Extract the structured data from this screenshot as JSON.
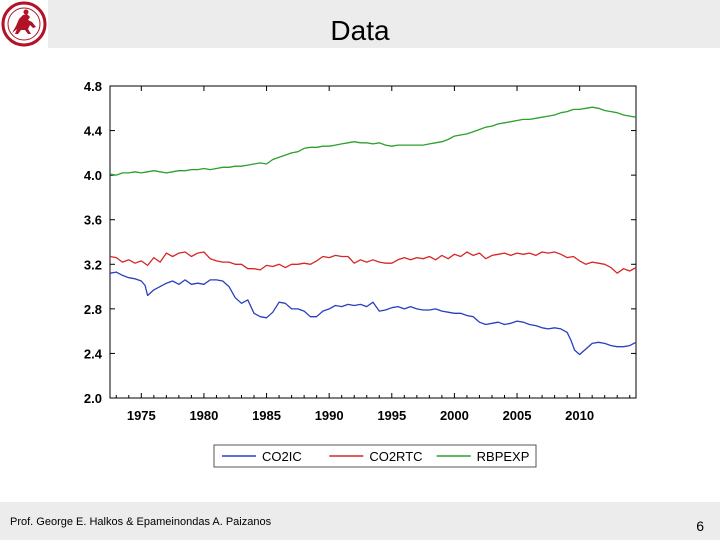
{
  "slide": {
    "title": "Data",
    "footer_author": "Prof. George E. Halkos & Epameinondas A. Paizanos",
    "page_number": "6",
    "logo_icon": "university-seal-icon"
  },
  "chart_data": {
    "type": "line",
    "title": "",
    "xlabel": "",
    "ylabel": "",
    "xlim": [
      1972.5,
      2014.5
    ],
    "ylim": [
      2.0,
      4.8
    ],
    "yticks": [
      2.0,
      2.4,
      2.8,
      3.2,
      3.6,
      4.0,
      4.4,
      4.8
    ],
    "ytick_labels": [
      "2.0",
      "2.4",
      "2.8",
      "3.2",
      "3.6",
      "4.0",
      "4.4",
      "4.8"
    ],
    "xticks": [
      1975,
      1980,
      1985,
      1990,
      1995,
      2000,
      2005,
      2010
    ],
    "xtick_labels": [
      "1975",
      "1980",
      "1985",
      "1990",
      "1995",
      "2000",
      "2005",
      "2010"
    ],
    "grid": false,
    "legend_position": "bottom",
    "series": [
      {
        "name": "CO2IC",
        "color": "#2a3fbf",
        "points": [
          [
            1972.5,
            3.12
          ],
          [
            1973.0,
            3.13
          ],
          [
            1973.5,
            3.1
          ],
          [
            1974.0,
            3.08
          ],
          [
            1974.5,
            3.07
          ],
          [
            1975.0,
            3.05
          ],
          [
            1975.3,
            3.01
          ],
          [
            1975.5,
            2.92
          ],
          [
            1976.0,
            2.97
          ],
          [
            1976.5,
            3.0
          ],
          [
            1977.0,
            3.03
          ],
          [
            1977.5,
            3.05
          ],
          [
            1978.0,
            3.02
          ],
          [
            1978.5,
            3.06
          ],
          [
            1979.0,
            3.02
          ],
          [
            1979.5,
            3.03
          ],
          [
            1980.0,
            3.02
          ],
          [
            1980.5,
            3.06
          ],
          [
            1981.0,
            3.06
          ],
          [
            1981.5,
            3.05
          ],
          [
            1982.0,
            3.0
          ],
          [
            1982.5,
            2.9
          ],
          [
            1983.0,
            2.85
          ],
          [
            1983.5,
            2.88
          ],
          [
            1984.0,
            2.76
          ],
          [
            1984.5,
            2.73
          ],
          [
            1985.0,
            2.72
          ],
          [
            1985.5,
            2.77
          ],
          [
            1986.0,
            2.86
          ],
          [
            1986.5,
            2.85
          ],
          [
            1987.0,
            2.8
          ],
          [
            1987.5,
            2.8
          ],
          [
            1988.0,
            2.78
          ],
          [
            1988.5,
            2.73
          ],
          [
            1989.0,
            2.73
          ],
          [
            1989.5,
            2.78
          ],
          [
            1990.0,
            2.8
          ],
          [
            1990.5,
            2.83
          ],
          [
            1991.0,
            2.82
          ],
          [
            1991.5,
            2.84
          ],
          [
            1992.0,
            2.83
          ],
          [
            1992.5,
            2.84
          ],
          [
            1993.0,
            2.82
          ],
          [
            1993.5,
            2.86
          ],
          [
            1994.0,
            2.78
          ],
          [
            1994.5,
            2.79
          ],
          [
            1995.0,
            2.81
          ],
          [
            1995.5,
            2.82
          ],
          [
            1996.0,
            2.8
          ],
          [
            1996.5,
            2.82
          ],
          [
            1997.0,
            2.8
          ],
          [
            1997.5,
            2.79
          ],
          [
            1998.0,
            2.79
          ],
          [
            1998.5,
            2.8
          ],
          [
            1999.0,
            2.78
          ],
          [
            1999.5,
            2.77
          ],
          [
            2000.0,
            2.76
          ],
          [
            2000.5,
            2.76
          ],
          [
            2001.0,
            2.74
          ],
          [
            2001.5,
            2.73
          ],
          [
            2002.0,
            2.68
          ],
          [
            2002.5,
            2.66
          ],
          [
            2003.0,
            2.67
          ],
          [
            2003.5,
            2.68
          ],
          [
            2004.0,
            2.66
          ],
          [
            2004.5,
            2.67
          ],
          [
            2005.0,
            2.69
          ],
          [
            2005.5,
            2.68
          ],
          [
            2006.0,
            2.66
          ],
          [
            2006.5,
            2.65
          ],
          [
            2007.0,
            2.63
          ],
          [
            2007.5,
            2.62
          ],
          [
            2008.0,
            2.63
          ],
          [
            2008.5,
            2.62
          ],
          [
            2009.0,
            2.59
          ],
          [
            2009.3,
            2.52
          ],
          [
            2009.6,
            2.43
          ],
          [
            2010.0,
            2.39
          ],
          [
            2010.5,
            2.44
          ],
          [
            2011.0,
            2.49
          ],
          [
            2011.5,
            2.5
          ],
          [
            2012.0,
            2.49
          ],
          [
            2012.5,
            2.47
          ],
          [
            2013.0,
            2.46
          ],
          [
            2013.5,
            2.46
          ],
          [
            2014.0,
            2.47
          ],
          [
            2014.5,
            2.5
          ]
        ]
      },
      {
        "name": "CO2RTC",
        "color": "#d62728",
        "points": [
          [
            1972.5,
            3.27
          ],
          [
            1973.0,
            3.26
          ],
          [
            1973.5,
            3.22
          ],
          [
            1974.0,
            3.24
          ],
          [
            1974.5,
            3.21
          ],
          [
            1975.0,
            3.23
          ],
          [
            1975.5,
            3.19
          ],
          [
            1976.0,
            3.26
          ],
          [
            1976.5,
            3.22
          ],
          [
            1977.0,
            3.3
          ],
          [
            1977.5,
            3.27
          ],
          [
            1978.0,
            3.3
          ],
          [
            1978.5,
            3.31
          ],
          [
            1979.0,
            3.27
          ],
          [
            1979.5,
            3.3
          ],
          [
            1980.0,
            3.31
          ],
          [
            1980.5,
            3.25
          ],
          [
            1981.0,
            3.23
          ],
          [
            1981.5,
            3.22
          ],
          [
            1982.0,
            3.22
          ],
          [
            1982.5,
            3.2
          ],
          [
            1983.0,
            3.2
          ],
          [
            1983.5,
            3.16
          ],
          [
            1984.0,
            3.16
          ],
          [
            1984.5,
            3.15
          ],
          [
            1985.0,
            3.19
          ],
          [
            1985.5,
            3.18
          ],
          [
            1986.0,
            3.2
          ],
          [
            1986.5,
            3.17
          ],
          [
            1987.0,
            3.2
          ],
          [
            1987.5,
            3.2
          ],
          [
            1988.0,
            3.21
          ],
          [
            1988.5,
            3.2
          ],
          [
            1989.0,
            3.23
          ],
          [
            1989.5,
            3.27
          ],
          [
            1990.0,
            3.26
          ],
          [
            1990.5,
            3.28
          ],
          [
            1991.0,
            3.27
          ],
          [
            1991.5,
            3.27
          ],
          [
            1992.0,
            3.21
          ],
          [
            1992.5,
            3.24
          ],
          [
            1993.0,
            3.22
          ],
          [
            1993.5,
            3.24
          ],
          [
            1994.0,
            3.22
          ],
          [
            1994.5,
            3.21
          ],
          [
            1995.0,
            3.21
          ],
          [
            1995.5,
            3.24
          ],
          [
            1996.0,
            3.26
          ],
          [
            1996.5,
            3.24
          ],
          [
            1997.0,
            3.26
          ],
          [
            1997.5,
            3.25
          ],
          [
            1998.0,
            3.27
          ],
          [
            1998.5,
            3.24
          ],
          [
            1999.0,
            3.28
          ],
          [
            1999.5,
            3.25
          ],
          [
            2000.0,
            3.29
          ],
          [
            2000.5,
            3.27
          ],
          [
            2001.0,
            3.31
          ],
          [
            2001.5,
            3.28
          ],
          [
            2002.0,
            3.3
          ],
          [
            2002.5,
            3.25
          ],
          [
            2003.0,
            3.28
          ],
          [
            2003.5,
            3.29
          ],
          [
            2004.0,
            3.3
          ],
          [
            2004.5,
            3.28
          ],
          [
            2005.0,
            3.3
          ],
          [
            2005.5,
            3.29
          ],
          [
            2006.0,
            3.3
          ],
          [
            2006.5,
            3.28
          ],
          [
            2007.0,
            3.31
          ],
          [
            2007.5,
            3.3
          ],
          [
            2008.0,
            3.31
          ],
          [
            2008.5,
            3.29
          ],
          [
            2009.0,
            3.26
          ],
          [
            2009.5,
            3.27
          ],
          [
            2010.0,
            3.23
          ],
          [
            2010.5,
            3.2
          ],
          [
            2011.0,
            3.22
          ],
          [
            2011.5,
            3.21
          ],
          [
            2012.0,
            3.2
          ],
          [
            2012.5,
            3.17
          ],
          [
            2013.0,
            3.12
          ],
          [
            2013.5,
            3.16
          ],
          [
            2014.0,
            3.14
          ],
          [
            2014.5,
            3.17
          ]
        ]
      },
      {
        "name": "RBPEXP",
        "color": "#2ca02c",
        "points": [
          [
            1972.5,
            4.01
          ],
          [
            1973.0,
            4.0
          ],
          [
            1973.5,
            4.02
          ],
          [
            1974.0,
            4.02
          ],
          [
            1974.5,
            4.03
          ],
          [
            1975.0,
            4.02
          ],
          [
            1975.5,
            4.03
          ],
          [
            1976.0,
            4.04
          ],
          [
            1976.5,
            4.03
          ],
          [
            1977.0,
            4.02
          ],
          [
            1977.5,
            4.03
          ],
          [
            1978.0,
            4.04
          ],
          [
            1978.5,
            4.04
          ],
          [
            1979.0,
            4.05
          ],
          [
            1979.5,
            4.05
          ],
          [
            1980.0,
            4.06
          ],
          [
            1980.5,
            4.05
          ],
          [
            1981.0,
            4.06
          ],
          [
            1981.5,
            4.07
          ],
          [
            1982.0,
            4.07
          ],
          [
            1982.5,
            4.08
          ],
          [
            1983.0,
            4.08
          ],
          [
            1983.5,
            4.09
          ],
          [
            1984.0,
            4.1
          ],
          [
            1984.5,
            4.11
          ],
          [
            1985.0,
            4.1
          ],
          [
            1985.5,
            4.14
          ],
          [
            1986.0,
            4.16
          ],
          [
            1986.5,
            4.18
          ],
          [
            1987.0,
            4.2
          ],
          [
            1987.5,
            4.21
          ],
          [
            1988.0,
            4.24
          ],
          [
            1988.5,
            4.25
          ],
          [
            1989.0,
            4.25
          ],
          [
            1989.5,
            4.26
          ],
          [
            1990.0,
            4.26
          ],
          [
            1990.5,
            4.27
          ],
          [
            1991.0,
            4.28
          ],
          [
            1991.5,
            4.29
          ],
          [
            1992.0,
            4.3
          ],
          [
            1992.5,
            4.29
          ],
          [
            1993.0,
            4.29
          ],
          [
            1993.5,
            4.28
          ],
          [
            1994.0,
            4.29
          ],
          [
            1994.5,
            4.27
          ],
          [
            1995.0,
            4.26
          ],
          [
            1995.5,
            4.27
          ],
          [
            1996.0,
            4.27
          ],
          [
            1996.5,
            4.27
          ],
          [
            1997.0,
            4.27
          ],
          [
            1997.5,
            4.27
          ],
          [
            1998.0,
            4.28
          ],
          [
            1998.5,
            4.29
          ],
          [
            1999.0,
            4.3
          ],
          [
            1999.5,
            4.32
          ],
          [
            2000.0,
            4.35
          ],
          [
            2000.5,
            4.36
          ],
          [
            2001.0,
            4.37
          ],
          [
            2001.5,
            4.39
          ],
          [
            2002.0,
            4.41
          ],
          [
            2002.5,
            4.43
          ],
          [
            2003.0,
            4.44
          ],
          [
            2003.5,
            4.46
          ],
          [
            2004.0,
            4.47
          ],
          [
            2004.5,
            4.48
          ],
          [
            2005.0,
            4.49
          ],
          [
            2005.5,
            4.5
          ],
          [
            2006.0,
            4.5
          ],
          [
            2006.5,
            4.51
          ],
          [
            2007.0,
            4.52
          ],
          [
            2007.5,
            4.53
          ],
          [
            2008.0,
            4.54
          ],
          [
            2008.5,
            4.56
          ],
          [
            2009.0,
            4.57
          ],
          [
            2009.5,
            4.59
          ],
          [
            2010.0,
            4.59
          ],
          [
            2010.5,
            4.6
          ],
          [
            2011.0,
            4.61
          ],
          [
            2011.5,
            4.6
          ],
          [
            2012.0,
            4.58
          ],
          [
            2012.5,
            4.57
          ],
          [
            2013.0,
            4.56
          ],
          [
            2013.5,
            4.54
          ],
          [
            2014.0,
            4.53
          ],
          [
            2014.5,
            4.52
          ]
        ]
      }
    ]
  }
}
